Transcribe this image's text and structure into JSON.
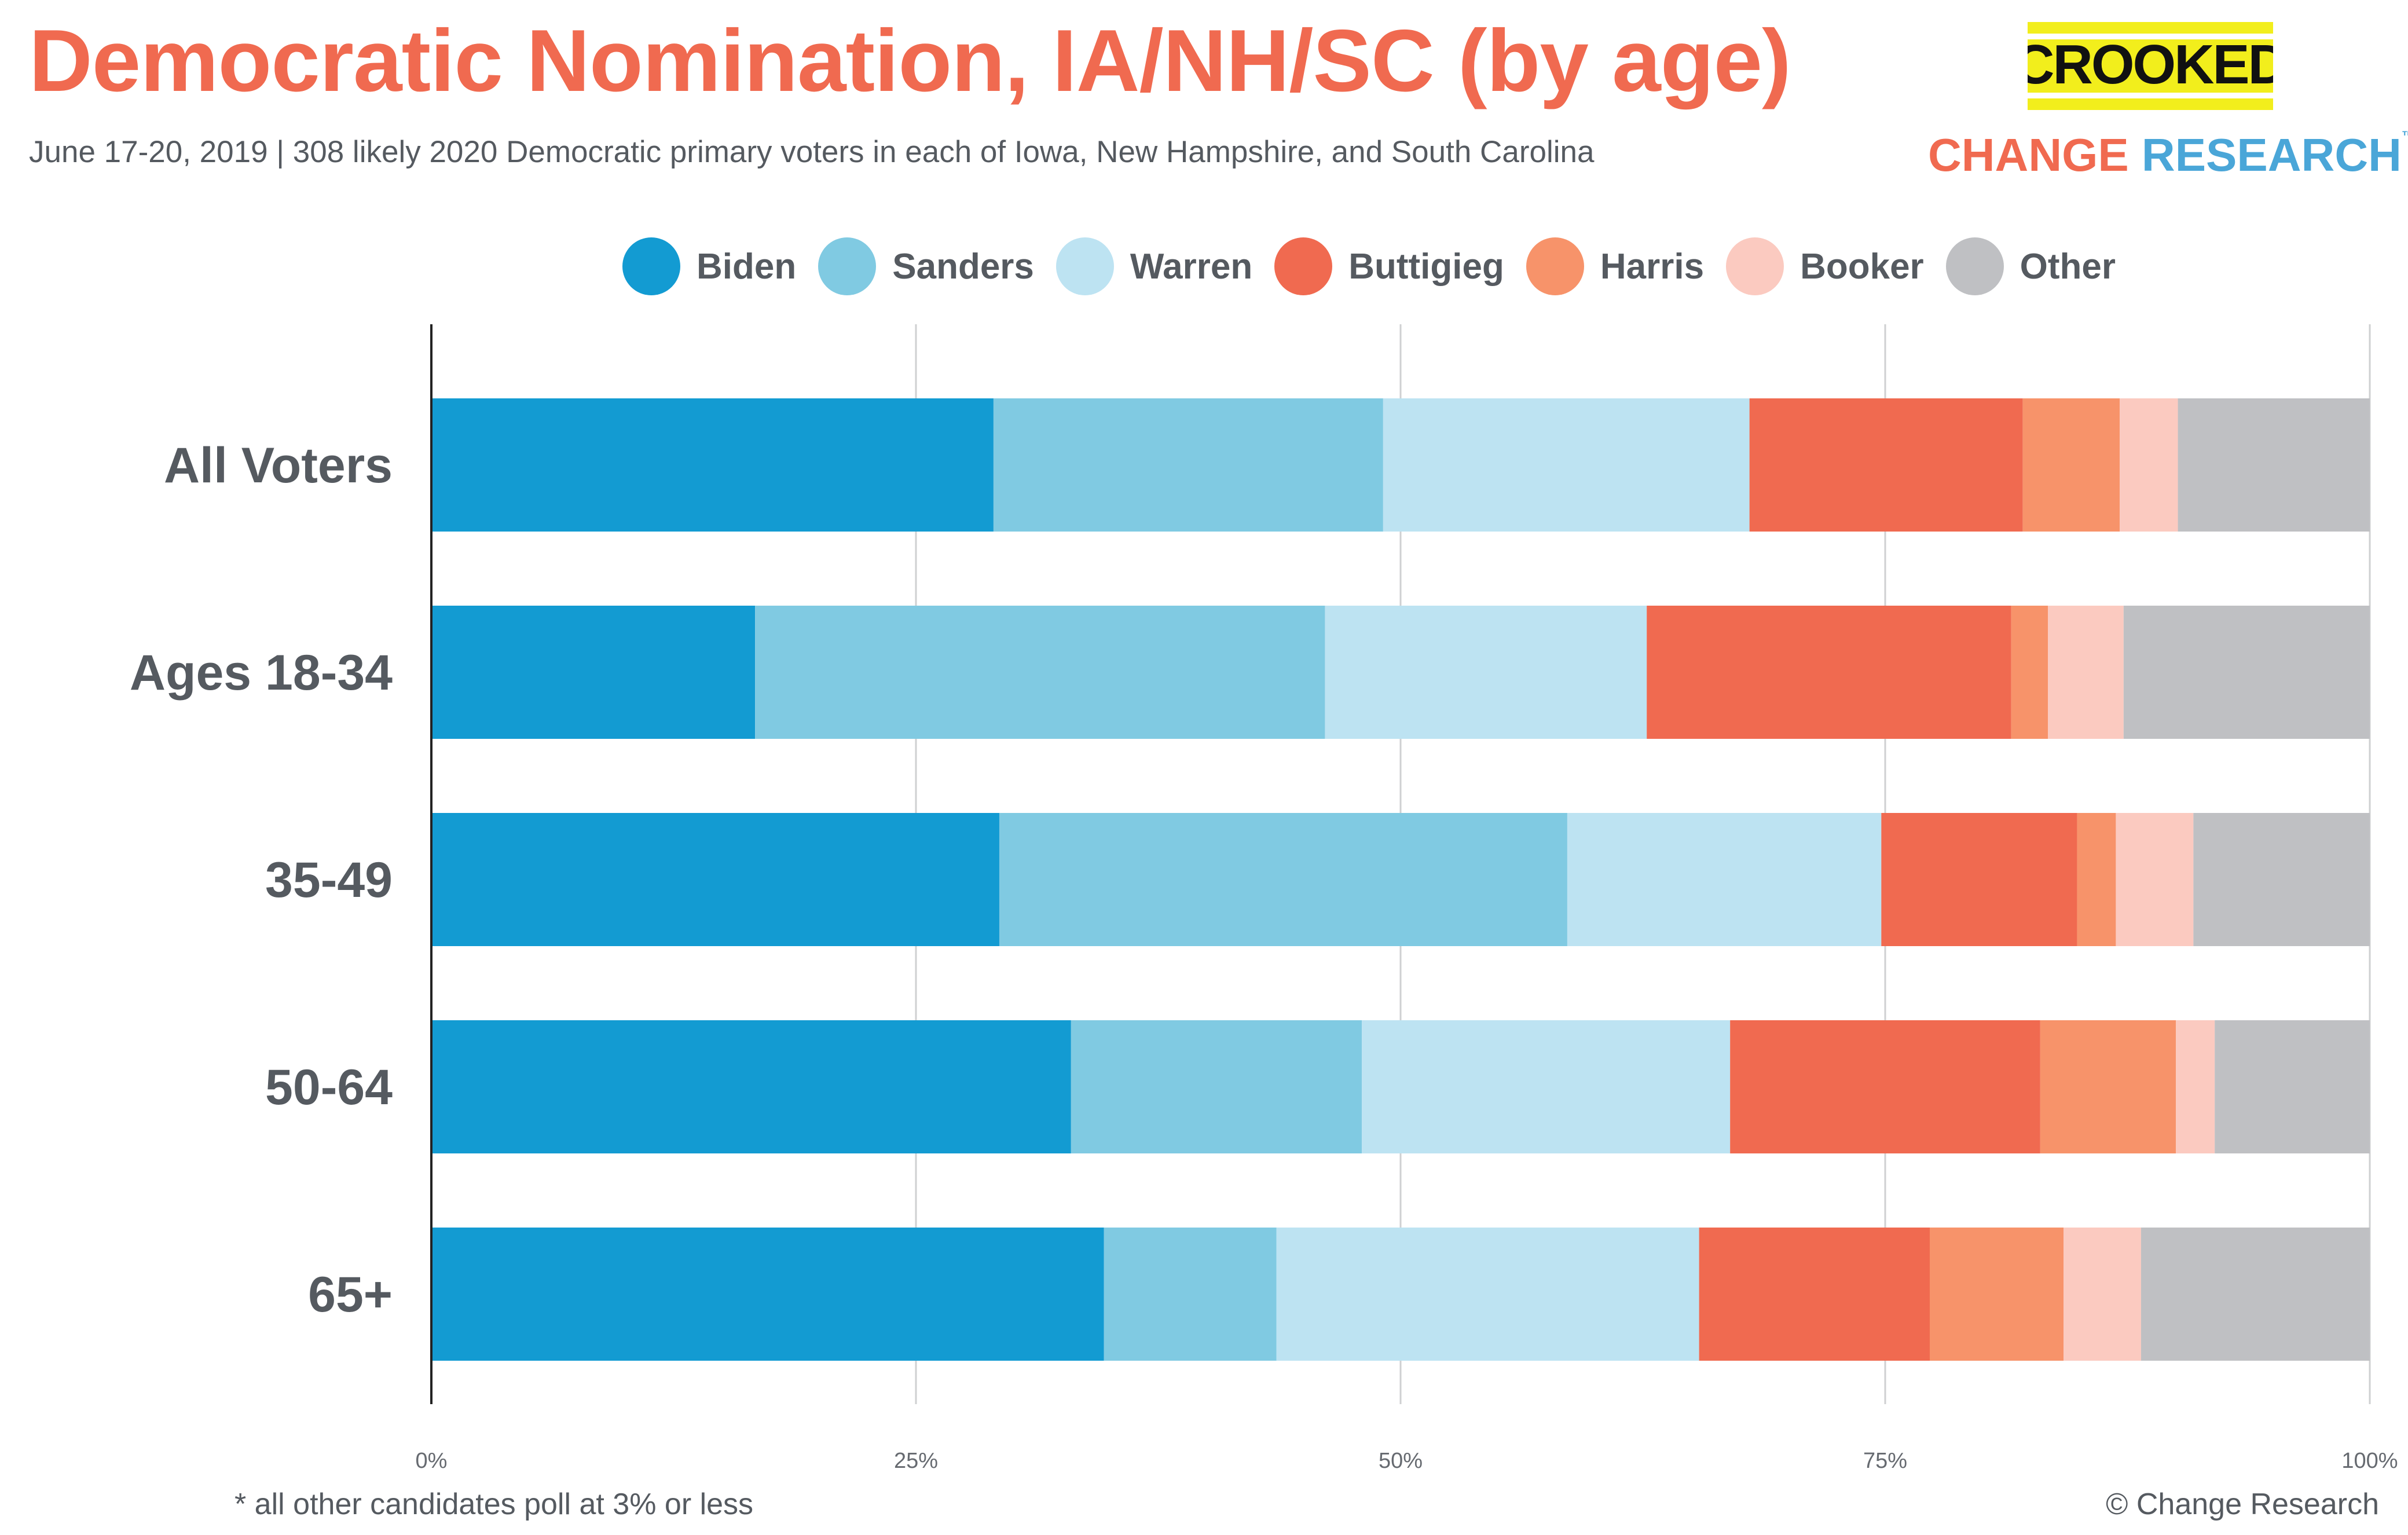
{
  "header": {
    "title": "Democratic Nomination, IA/NH/SC (by age)",
    "subtitle": "June 17-20, 2019  | 308 likely 2020 Democratic primary voters in each of Iowa, New Hampshire, and South Carolina"
  },
  "logos": {
    "crooked": "CROOKED",
    "change": "CHANGE",
    "research": "RESEARCH",
    "trademark": "™"
  },
  "footer": {
    "footnote": "* all other candidates poll at 3% or less",
    "copyright": "© Change Research"
  },
  "chart_data": {
    "type": "bar",
    "orientation": "horizontal",
    "stacked": true,
    "categories": [
      "All Voters",
      "Ages 18-34",
      "35-49",
      "50-64",
      "65+"
    ],
    "series": [
      {
        "name": "Biden",
        "color": "#139BD2",
        "values": [
          29,
          16.7,
          29.3,
          33,
          34.7
        ]
      },
      {
        "name": "Sanders",
        "color": "#80CAE2",
        "values": [
          20.1,
          29.4,
          29.3,
          15,
          8.9
        ]
      },
      {
        "name": "Warren",
        "color": "#BDE3F2",
        "values": [
          18.9,
          16.6,
          16.2,
          19,
          21.8
        ]
      },
      {
        "name": "Buttigieg",
        "color": "#F06A50",
        "values": [
          14.1,
          18.8,
          10.1,
          16,
          11.9
        ]
      },
      {
        "name": "Harris",
        "color": "#F7936A",
        "values": [
          5,
          1.9,
          2,
          7,
          6.9
        ]
      },
      {
        "name": "Booker",
        "color": "#FBCAC0",
        "values": [
          3,
          3.9,
          4,
          2,
          4
        ]
      },
      {
        "name": "Other",
        "color": "#BFC0C3",
        "values": [
          9.9,
          12.7,
          9.1,
          8,
          11.8
        ]
      }
    ],
    "xlim": [
      0,
      100
    ],
    "xticks": [
      "0%",
      "25%",
      "50%",
      "75%",
      "100%"
    ],
    "grid": true,
    "legend_position": "top"
  }
}
